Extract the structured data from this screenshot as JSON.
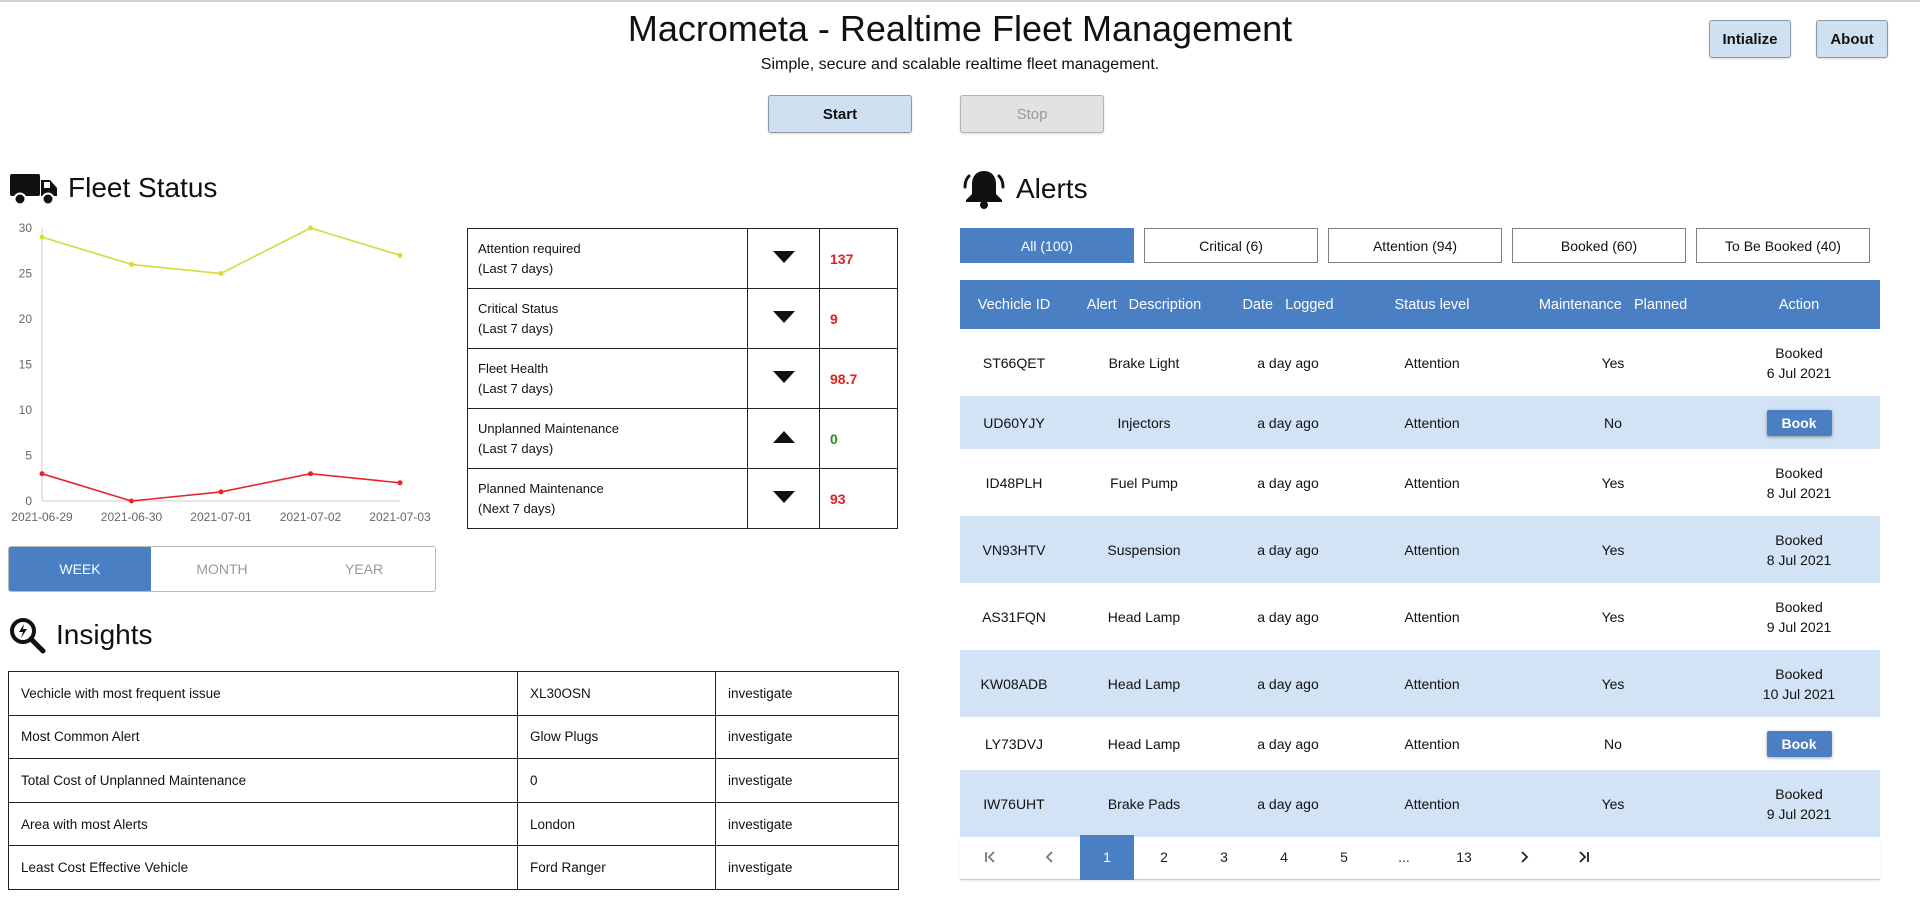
{
  "header": {
    "title": "Macrometa - Realtime Fleet Management",
    "subtitle": "Simple, secure and scalable realtime fleet management.",
    "initialize_label": "Intialize",
    "about_label": "About",
    "start_label": "Start",
    "stop_label": "Stop"
  },
  "fleet_status": {
    "title": "Fleet Status",
    "icon": "truck-icon",
    "range_tabs": [
      "WEEK",
      "MONTH",
      "YEAR"
    ],
    "range_selected": "WEEK",
    "metrics": [
      {
        "label": "Attention required",
        "period": "(Last 7 days)",
        "trend": "down",
        "value": "137",
        "color": "#e02020"
      },
      {
        "label": "Critical Status",
        "period": "(Last 7 days)",
        "trend": "down",
        "value": "9",
        "color": "#e02020"
      },
      {
        "label": "Fleet Health",
        "period": "(Last 7 days)",
        "trend": "down",
        "value": "98.7",
        "color": "#e02020"
      },
      {
        "label": "Unplanned Maintenance",
        "period": "(Last 7 days)",
        "trend": "up",
        "value": "0",
        "color": "#1f8f1f"
      },
      {
        "label": "Planned Maintenance",
        "period": "(Next 7 days)",
        "trend": "down",
        "value": "93",
        "color": "#e02020"
      }
    ]
  },
  "chart_data": {
    "type": "line",
    "categories": [
      "2021-06-29",
      "2021-06-30",
      "2021-07-01",
      "2021-07-02",
      "2021-07-03"
    ],
    "series": [
      {
        "color": "#d6db3a",
        "values": [
          29,
          26,
          25,
          30,
          27
        ]
      },
      {
        "color": "#e8242b",
        "values": [
          3,
          0,
          1,
          3,
          2
        ]
      }
    ],
    "ylim": [
      0,
      30
    ],
    "yticks": [
      0,
      5,
      10,
      15,
      20,
      25,
      30
    ],
    "grid": false
  },
  "insights": {
    "title": "Insights",
    "icon": "magnifier-icon",
    "rows": [
      {
        "label": "Vechicle with most frequent issue",
        "value": "XL30OSN",
        "action": "investigate"
      },
      {
        "label": "Most Common Alert",
        "value": "Glow Plugs",
        "action": "investigate"
      },
      {
        "label": "Total Cost of Unplanned Maintenance",
        "value": "0",
        "action": "investigate"
      },
      {
        "label": "Area with most Alerts",
        "value": "London",
        "action": "investigate"
      },
      {
        "label": "Least Cost Effective Vehicle",
        "value": "Ford Ranger",
        "action": "investigate"
      }
    ]
  },
  "alerts": {
    "title": "Alerts",
    "icon": "bell-icon",
    "tabs": [
      "All (100)",
      "Critical (6)",
      "Attention (94)",
      "Booked (60)",
      "To Be Booked (40)"
    ],
    "active_tab": 0,
    "columns": [
      "Vechicle ID",
      "Alert   Description",
      "Date   Logged",
      "Status level",
      "Maintenance   Planned",
      "Action"
    ],
    "rows": [
      {
        "id": "ST66QET",
        "desc": "Brake Light",
        "date": "a day ago",
        "status": "Attention",
        "planned": "Yes",
        "action": "Booked",
        "action_date": "6 Jul 2021"
      },
      {
        "id": "UD60YJY",
        "desc": "Injectors",
        "date": "a day ago",
        "status": "Attention",
        "planned": "No",
        "action": "Book",
        "action_date": ""
      },
      {
        "id": "ID48PLH",
        "desc": "Fuel Pump",
        "date": "a day ago",
        "status": "Attention",
        "planned": "Yes",
        "action": "Booked",
        "action_date": "8 Jul 2021"
      },
      {
        "id": "VN93HTV",
        "desc": "Suspension",
        "date": "a day ago",
        "status": "Attention",
        "planned": "Yes",
        "action": "Booked",
        "action_date": "8 Jul 2021"
      },
      {
        "id": "AS31FQN",
        "desc": "Head Lamp",
        "date": "a day ago",
        "status": "Attention",
        "planned": "Yes",
        "action": "Booked",
        "action_date": "9 Jul 2021"
      },
      {
        "id": "KW08ADB",
        "desc": "Head Lamp",
        "date": "a day ago",
        "status": "Attention",
        "planned": "Yes",
        "action": "Booked",
        "action_date": "10 Jul 2021"
      },
      {
        "id": "LY73DVJ",
        "desc": "Head Lamp",
        "date": "a day ago",
        "status": "Attention",
        "planned": "No",
        "action": "Book",
        "action_date": ""
      },
      {
        "id": "IW76UHT",
        "desc": "Brake Pads",
        "date": "a day ago",
        "status": "Attention",
        "planned": "Yes",
        "action": "Booked",
        "action_date": "9 Jul 2021"
      }
    ],
    "pagination": {
      "pages": [
        "1",
        "2",
        "3",
        "4",
        "5",
        "...",
        "13"
      ],
      "current": "1"
    }
  }
}
